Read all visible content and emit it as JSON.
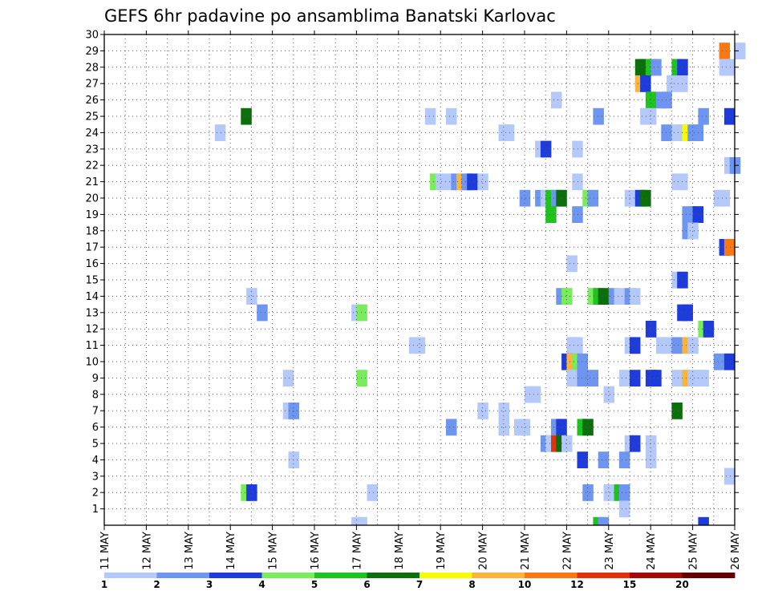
{
  "chart_data": {
    "type": "heatmap",
    "title": "GEFS 6hr padavine po ansamblima Banatski Karlovac",
    "xlabel": "",
    "ylabel": "",
    "x_tick_labels": [
      "11 MAY",
      "12 MAY",
      "13 MAY",
      "14 MAY",
      "15 MAY",
      "16 MAY",
      "17 MAY",
      "18 MAY",
      "19 MAY",
      "20 MAY",
      "21 MAY",
      "22 MAY",
      "23 MAY",
      "24 MAY",
      "25 MAY",
      "26 MAY"
    ],
    "y_tick_labels": [
      "1",
      "2",
      "3",
      "4",
      "5",
      "6",
      "7",
      "8",
      "9",
      "10",
      "11",
      "12",
      "13",
      "14",
      "15",
      "16",
      "17",
      "18",
      "19",
      "20",
      "21",
      "22",
      "23",
      "24",
      "25",
      "26",
      "27",
      "28",
      "29",
      "30"
    ],
    "x_range_days": [
      0,
      15
    ],
    "y_range": [
      0,
      30
    ],
    "grid": true,
    "colorbar": {
      "placement": "bottom",
      "labels": [
        "1",
        "2",
        "3",
        "4",
        "5",
        "6",
        "7",
        "8",
        "10",
        "12",
        "15",
        "20"
      ],
      "colors": [
        "#b4c8fa",
        "#6e96f0",
        "#1e3cdc",
        "#78ec5a",
        "#1ec31e",
        "#0b6f0b",
        "#fafa00",
        "#fab43c",
        "#fa7814",
        "#e1320a",
        "#a00a0a",
        "#640000"
      ]
    },
    "cells": [
      [
        14.13,
        0,
        3
      ],
      [
        15.0,
        29,
        1
      ],
      [
        14.63,
        29,
        9
      ],
      [
        12.63,
        28,
        6
      ],
      [
        12.75,
        28,
        6
      ],
      [
        12.88,
        28,
        5
      ],
      [
        13.0,
        28,
        2
      ],
      [
        13.5,
        28,
        5
      ],
      [
        13.63,
        28,
        3
      ],
      [
        14.63,
        28,
        1
      ],
      [
        14.75,
        28,
        1
      ],
      [
        12.63,
        27,
        8
      ],
      [
        12.75,
        27,
        3
      ],
      [
        13.38,
        27,
        1
      ],
      [
        13.63,
        27,
        1
      ],
      [
        12.88,
        26,
        5
      ],
      [
        13.13,
        26,
        2
      ],
      [
        13.25,
        26,
        2
      ],
      [
        10.63,
        26,
        1
      ],
      [
        3.25,
        25,
        6
      ],
      [
        7.63,
        25,
        1
      ],
      [
        8.13,
        25,
        1
      ],
      [
        11.63,
        25,
        2
      ],
      [
        12.75,
        25,
        1
      ],
      [
        12.88,
        25,
        1
      ],
      [
        14.13,
        25,
        2
      ],
      [
        14.75,
        25,
        3
      ],
      [
        2.63,
        24,
        1
      ],
      [
        9.38,
        24,
        1
      ],
      [
        9.5,
        24,
        1
      ],
      [
        13.25,
        24,
        2
      ],
      [
        13.5,
        24,
        1
      ],
      [
        13.63,
        24,
        1
      ],
      [
        13.75,
        24,
        7
      ],
      [
        13.88,
        24,
        2
      ],
      [
        14.0,
        24,
        2
      ],
      [
        10.25,
        23,
        1
      ],
      [
        10.38,
        23,
        3
      ],
      [
        11.13,
        23,
        1
      ],
      [
        14.75,
        22,
        1
      ],
      [
        14.88,
        22,
        2
      ],
      [
        7.75,
        21,
        4
      ],
      [
        7.88,
        21,
        1
      ],
      [
        8.13,
        21,
        1
      ],
      [
        8.25,
        21,
        2
      ],
      [
        8.38,
        21,
        8
      ],
      [
        8.5,
        21,
        2
      ],
      [
        8.63,
        21,
        3
      ],
      [
        8.88,
        21,
        1
      ],
      [
        11.13,
        21,
        1
      ],
      [
        13.5,
        21,
        1
      ],
      [
        13.63,
        21,
        1
      ],
      [
        9.88,
        20,
        2
      ],
      [
        10.25,
        20,
        2
      ],
      [
        10.38,
        20,
        1
      ],
      [
        10.5,
        20,
        5
      ],
      [
        10.63,
        20,
        2
      ],
      [
        10.75,
        20,
        6
      ],
      [
        11.38,
        20,
        4
      ],
      [
        11.5,
        20,
        2
      ],
      [
        12.38,
        20,
        1
      ],
      [
        12.63,
        20,
        3
      ],
      [
        12.75,
        20,
        6
      ],
      [
        14.5,
        20,
        1
      ],
      [
        14.63,
        20,
        1
      ],
      [
        10.5,
        19,
        5
      ],
      [
        11.13,
        19,
        2
      ],
      [
        13.75,
        19,
        2
      ],
      [
        13.88,
        19,
        2
      ],
      [
        14.0,
        19,
        3
      ],
      [
        13.75,
        18,
        2
      ],
      [
        13.88,
        18,
        1
      ],
      [
        14.63,
        17,
        3
      ],
      [
        14.75,
        17,
        9
      ],
      [
        11.0,
        16,
        1
      ],
      [
        13.5,
        15,
        1
      ],
      [
        13.63,
        15,
        3
      ],
      [
        3.38,
        14,
        1
      ],
      [
        10.75,
        14,
        2
      ],
      [
        10.88,
        14,
        4
      ],
      [
        11.5,
        14,
        4
      ],
      [
        11.63,
        14,
        5
      ],
      [
        11.75,
        14,
        6
      ],
      [
        12.0,
        14,
        2
      ],
      [
        12.13,
        14,
        1
      ],
      [
        12.38,
        14,
        2
      ],
      [
        12.5,
        14,
        1
      ],
      [
        3.63,
        13,
        2
      ],
      [
        5.88,
        13,
        1
      ],
      [
        6.0,
        13,
        4
      ],
      [
        13.63,
        13,
        3
      ],
      [
        13.75,
        13,
        3
      ],
      [
        12.88,
        12,
        3
      ],
      [
        14.13,
        12,
        4
      ],
      [
        14.25,
        12,
        3
      ],
      [
        7.25,
        11,
        1
      ],
      [
        7.38,
        11,
        1
      ],
      [
        11.0,
        11,
        1
      ],
      [
        11.13,
        11,
        1
      ],
      [
        12.38,
        11,
        1
      ],
      [
        12.5,
        11,
        3
      ],
      [
        13.13,
        11,
        1
      ],
      [
        13.25,
        11,
        1
      ],
      [
        13.5,
        11,
        2
      ],
      [
        13.75,
        11,
        8
      ],
      [
        13.88,
        11,
        1
      ],
      [
        10.88,
        10,
        3
      ],
      [
        11.0,
        10,
        8
      ],
      [
        11.13,
        10,
        4
      ],
      [
        11.25,
        10,
        2
      ],
      [
        14.5,
        10,
        2
      ],
      [
        14.75,
        10,
        3
      ],
      [
        4.25,
        9,
        1
      ],
      [
        6.0,
        9,
        4
      ],
      [
        11.0,
        9,
        1
      ],
      [
        11.25,
        9,
        2
      ],
      [
        11.5,
        9,
        2
      ],
      [
        12.25,
        9,
        1
      ],
      [
        12.5,
        9,
        3
      ],
      [
        12.88,
        9,
        3
      ],
      [
        13.0,
        9,
        3
      ],
      [
        13.5,
        9,
        1
      ],
      [
        13.75,
        9,
        8
      ],
      [
        13.88,
        9,
        1
      ],
      [
        14.0,
        9,
        1
      ],
      [
        14.13,
        9,
        1
      ],
      [
        10.0,
        8,
        1
      ],
      [
        10.13,
        8,
        1
      ],
      [
        11.88,
        8,
        1
      ],
      [
        13.5,
        7,
        6
      ],
      [
        4.25,
        7,
        1
      ],
      [
        4.38,
        7,
        2
      ],
      [
        8.88,
        7,
        1
      ],
      [
        9.38,
        7,
        1
      ],
      [
        8.13,
        6,
        2
      ],
      [
        9.38,
        6,
        1
      ],
      [
        9.75,
        6,
        1
      ],
      [
        9.88,
        6,
        1
      ],
      [
        10.63,
        6,
        2
      ],
      [
        10.75,
        6,
        3
      ],
      [
        11.25,
        6,
        5
      ],
      [
        11.38,
        6,
        6
      ],
      [
        10.38,
        5,
        2
      ],
      [
        10.5,
        5,
        1
      ],
      [
        10.63,
        5,
        10
      ],
      [
        10.75,
        5,
        6
      ],
      [
        10.88,
        5,
        1
      ],
      [
        12.38,
        5,
        1
      ],
      [
        12.5,
        5,
        3
      ],
      [
        12.88,
        5,
        1
      ],
      [
        4.38,
        4,
        1
      ],
      [
        11.25,
        4,
        3
      ],
      [
        11.75,
        4,
        2
      ],
      [
        12.25,
        4,
        2
      ],
      [
        12.88,
        4,
        1
      ],
      [
        14.75,
        3,
        1
      ],
      [
        3.25,
        2,
        4
      ],
      [
        3.38,
        2,
        3
      ],
      [
        6.25,
        2,
        1
      ],
      [
        11.38,
        2,
        2
      ],
      [
        11.88,
        2,
        1
      ],
      [
        12.13,
        2,
        5
      ],
      [
        12.25,
        2,
        2
      ],
      [
        12.25,
        1,
        1
      ],
      [
        5.88,
        0,
        1
      ],
      [
        6.0,
        0,
        1
      ],
      [
        11.63,
        0,
        5
      ],
      [
        11.75,
        0,
        2
      ],
      [
        3.38,
        -1,
        1
      ],
      [
        4.38,
        -1,
        1
      ],
      [
        11.5,
        -1,
        3
      ],
      [
        11.63,
        -1,
        12
      ],
      [
        11.75,
        -1,
        5
      ],
      [
        11.88,
        -1,
        3
      ],
      [
        13.75,
        -1,
        2
      ],
      [
        13.88,
        -1,
        2
      ],
      [
        14.0,
        -1,
        1
      ],
      [
        14.13,
        -1,
        2
      ],
      [
        14.25,
        -1,
        2
      ],
      [
        14.75,
        -1,
        1
      ]
    ]
  }
}
